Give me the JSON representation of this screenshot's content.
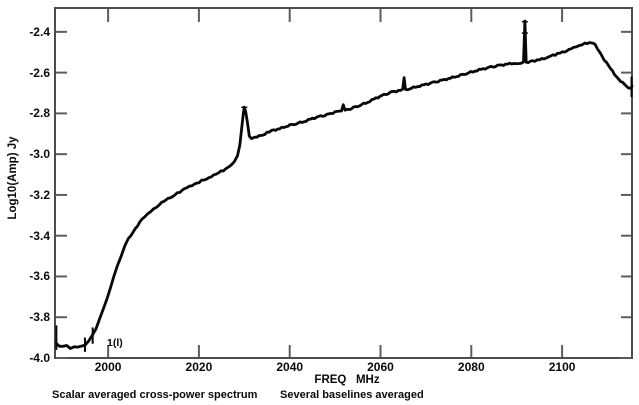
{
  "figure": {
    "background": "#ffffff",
    "frame_color": "#4d4d4d",
    "tick_color": "#5d5d5d",
    "text_color": "#0a0a0a",
    "line_color": "#080808"
  },
  "captions": {
    "left": "Scalar averaged cross-power spectrum",
    "right": "Several baselines averaged"
  },
  "chart_data": {
    "type": "line",
    "title": "",
    "xlabel": "FREQ   MHz",
    "ylabel": "Log10(Amp) Jy",
    "xlim": [
      1988.3,
      2115.4
    ],
    "ylim": [
      -4.0,
      -2.283
    ],
    "x_ticks": [
      2000,
      2020,
      2040,
      2060,
      2080,
      2100
    ],
    "y_ticks": [
      -2.4,
      -2.6,
      -2.8,
      -3.0,
      -3.2,
      -3.4,
      -3.6,
      -3.8,
      -4.0
    ],
    "grid": false,
    "legend": null,
    "marker_style": "dense plus markers forming a thick fuzzy trace",
    "annotation": {
      "text": "1(l)",
      "freq": 1999.8,
      "value": -3.901
    },
    "series": [
      {
        "name": "scalar averaged cross-power spectrum",
        "points": [
          [
            1988.6,
            -3.93
          ],
          [
            1989.3,
            -3.94
          ],
          [
            1990.1,
            -3.945
          ],
          [
            1990.9,
            -3.94
          ],
          [
            1991.7,
            -3.95
          ],
          [
            1992.5,
            -3.945
          ],
          [
            1993.3,
            -3.95
          ],
          [
            1994.1,
            -3.94
          ],
          [
            1994.9,
            -3.935
          ],
          [
            1995.7,
            -3.92
          ],
          [
            1996.5,
            -3.89
          ],
          [
            1997.3,
            -3.855
          ],
          [
            1998.1,
            -3.81
          ],
          [
            1998.9,
            -3.765
          ],
          [
            1999.7,
            -3.71
          ],
          [
            2000.5,
            -3.655
          ],
          [
            2001.3,
            -3.6
          ],
          [
            2002.1,
            -3.545
          ],
          [
            2002.9,
            -3.495
          ],
          [
            2003.7,
            -3.45
          ],
          [
            2004.5,
            -3.415
          ],
          [
            2005.5,
            -3.38
          ],
          [
            2006.5,
            -3.35
          ],
          [
            2007.5,
            -3.32
          ],
          [
            2008.7,
            -3.295
          ],
          [
            2010.0,
            -3.27
          ],
          [
            2011.3,
            -3.245
          ],
          [
            2012.7,
            -3.225
          ],
          [
            2014.2,
            -3.205
          ],
          [
            2015.8,
            -3.185
          ],
          [
            2017.4,
            -3.165
          ],
          [
            2019.0,
            -3.15
          ],
          [
            2020.6,
            -3.13
          ],
          [
            2022.2,
            -3.115
          ],
          [
            2023.8,
            -3.095
          ],
          [
            2025.4,
            -3.08
          ],
          [
            2026.8,
            -3.06
          ],
          [
            2027.8,
            -3.04
          ],
          [
            2028.5,
            -3.01
          ],
          [
            2029.0,
            -2.955
          ],
          [
            2029.4,
            -2.88
          ],
          [
            2029.8,
            -2.795
          ],
          [
            2030.0,
            -2.77
          ],
          [
            2030.3,
            -2.79
          ],
          [
            2030.7,
            -2.85
          ],
          [
            2031.1,
            -2.91
          ],
          [
            2031.6,
            -2.925
          ],
          [
            2032.3,
            -2.92
          ],
          [
            2033.2,
            -2.91
          ],
          [
            2034.5,
            -2.9
          ],
          [
            2036.0,
            -2.885
          ],
          [
            2037.8,
            -2.875
          ],
          [
            2039.6,
            -2.86
          ],
          [
            2041.4,
            -2.85
          ],
          [
            2043.2,
            -2.84
          ],
          [
            2045.0,
            -2.825
          ],
          [
            2046.8,
            -2.815
          ],
          [
            2048.6,
            -2.805
          ],
          [
            2050.4,
            -2.79
          ],
          [
            2051.4,
            -2.785
          ],
          [
            2051.8,
            -2.76
          ],
          [
            2052.2,
            -2.785
          ],
          [
            2053.6,
            -2.775
          ],
          [
            2055.4,
            -2.76
          ],
          [
            2057.2,
            -2.745
          ],
          [
            2059.0,
            -2.725
          ],
          [
            2060.8,
            -2.71
          ],
          [
            2062.6,
            -2.695
          ],
          [
            2064.4,
            -2.687
          ],
          [
            2064.9,
            -2.684
          ],
          [
            2065.2,
            -2.628
          ],
          [
            2065.5,
            -2.684
          ],
          [
            2066.4,
            -2.678
          ],
          [
            2068.2,
            -2.668
          ],
          [
            2070.0,
            -2.658
          ],
          [
            2071.8,
            -2.648
          ],
          [
            2073.6,
            -2.638
          ],
          [
            2075.4,
            -2.627
          ],
          [
            2077.2,
            -2.615
          ],
          [
            2079.0,
            -2.603
          ],
          [
            2080.8,
            -2.592
          ],
          [
            2082.6,
            -2.582
          ],
          [
            2084.4,
            -2.573
          ],
          [
            2086.2,
            -2.565
          ],
          [
            2088.0,
            -2.558
          ],
          [
            2089.8,
            -2.553
          ],
          [
            2091.5,
            -2.551
          ],
          [
            2091.8,
            -2.35
          ],
          [
            2092.1,
            -2.55
          ],
          [
            2093.5,
            -2.545
          ],
          [
            2095.0,
            -2.536
          ],
          [
            2096.5,
            -2.527
          ],
          [
            2098.0,
            -2.516
          ],
          [
            2099.5,
            -2.504
          ],
          [
            2101.0,
            -2.492
          ],
          [
            2102.5,
            -2.479
          ],
          [
            2103.8,
            -2.468
          ],
          [
            2105.0,
            -2.458
          ],
          [
            2106.0,
            -2.452
          ],
          [
            2106.6,
            -2.452
          ],
          [
            2107.2,
            -2.462
          ],
          [
            2107.8,
            -2.484
          ],
          [
            2108.5,
            -2.51
          ],
          [
            2109.3,
            -2.538
          ],
          [
            2110.2,
            -2.567
          ],
          [
            2111.1,
            -2.594
          ],
          [
            2112.0,
            -2.619
          ],
          [
            2112.9,
            -2.641
          ],
          [
            2113.8,
            -2.659
          ],
          [
            2114.6,
            -2.672
          ],
          [
            2115.2,
            -2.679
          ],
          [
            2115.4,
            -2.665
          ]
        ]
      }
    ],
    "error_bars": [
      {
        "freq": 1988.6,
        "from": -3.84,
        "to": -3.96
      },
      {
        "freq": 1994.9,
        "from": -3.9,
        "to": -3.97
      },
      {
        "freq": 1996.6,
        "from": -3.85,
        "to": -3.93
      },
      {
        "freq": 2115.3,
        "from": -2.62,
        "to": -2.72
      }
    ],
    "spike_caps": [
      {
        "freq": 2091.8,
        "value": -2.35
      },
      {
        "freq": 2091.8,
        "value": -2.406
      },
      {
        "freq": 2030.0,
        "value": -2.77
      }
    ]
  }
}
